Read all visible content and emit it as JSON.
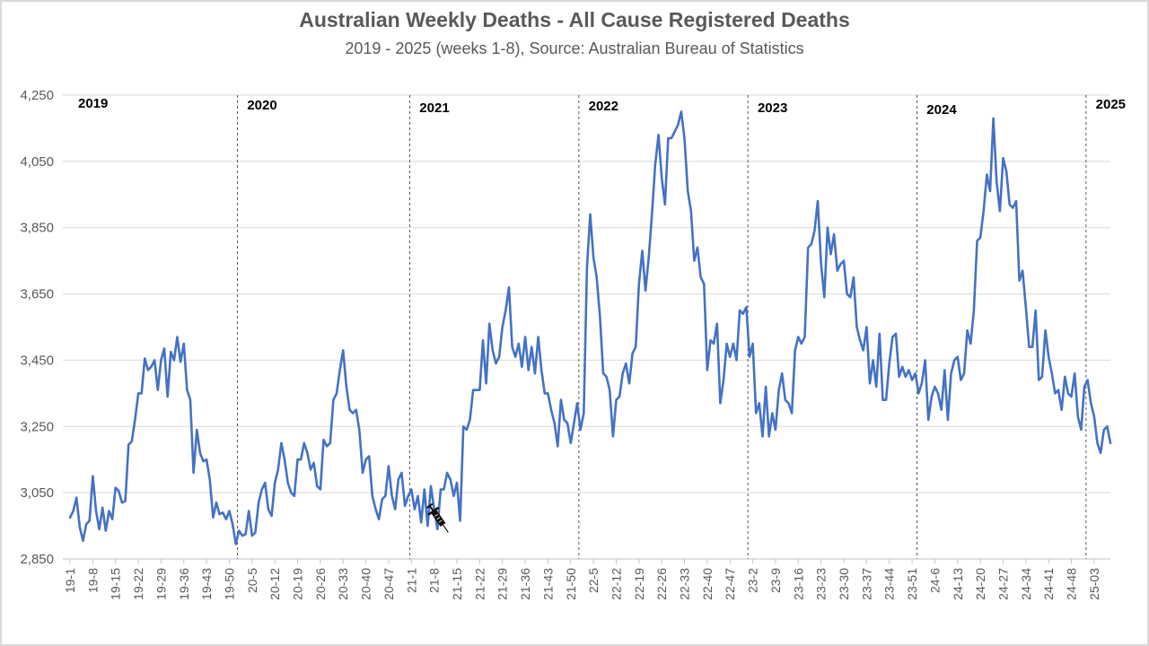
{
  "chart_data": {
    "type": "line",
    "title": "Australian Weekly Deaths - All Cause Registered Deaths",
    "subtitle": "2019 - 2025 (weeks 1-8), Source: Australian Bureau of Statistics",
    "xlabel": "",
    "ylabel": "",
    "ylim": [
      2850,
      4250
    ],
    "yticks": [
      "2,850",
      "3,050",
      "3,250",
      "3,450",
      "3,650",
      "3,850",
      "4,050",
      "4,250"
    ],
    "grid": "horizontal",
    "line_color": "#4472C4",
    "year_labels": [
      "2019",
      "2020",
      "2021",
      "2022",
      "2023",
      "2024",
      "2025"
    ],
    "xtick_labels": [
      "19-1",
      "19-8",
      "19-15",
      "19-22",
      "19-29",
      "19-36",
      "19-43",
      "19-50",
      "20-5",
      "20-12",
      "20-19",
      "20-26",
      "20-33",
      "20-40",
      "20-47",
      "21-1",
      "21-8",
      "21-15",
      "21-22",
      "21-29",
      "21-36",
      "21-43",
      "21-50",
      "22-5",
      "22-12",
      "22-19",
      "22-26",
      "22-33",
      "22-40",
      "22-47",
      "23-2",
      "23-9",
      "23-16",
      "23-23",
      "23-30",
      "23-37",
      "23-44",
      "23-51",
      "24-6",
      "24-13",
      "24-20",
      "24-27",
      "24-34",
      "24-41",
      "24-48",
      "25-03"
    ],
    "vaccine_marker_week": "21-9",
    "series": [
      {
        "values": [
          2975,
          2995,
          3035,
          2945,
          2905,
          2955,
          2965,
          3100,
          2995,
          2940,
          3005,
          2935,
          2995,
          2970,
          3065,
          3055,
          3020,
          3025,
          3195,
          3205,
          3270,
          3350,
          3350,
          3455,
          3420,
          3430,
          3450,
          3360,
          3450,
          3485,
          3340,
          3475,
          3450,
          3520,
          3445,
          3500,
          3360,
          3330,
          3110,
          3240,
          3170,
          3145,
          3150,
          3090,
          2975,
          3020,
          2985,
          2990,
          2970,
          2995,
          2955,
          2895,
          2935,
          2920,
          2925,
          2995,
          2920,
          2930,
          3020,
          3060,
          3080,
          3000,
          2980,
          3080,
          3120,
          3200,
          3150,
          3080,
          3050,
          3040,
          3150,
          3150,
          3200,
          3170,
          3120,
          3140,
          3070,
          3060,
          3210,
          3190,
          3200,
          3330,
          3350,
          3420,
          3480,
          3370,
          3300,
          3290,
          3300,
          3240,
          3110,
          3150,
          3160,
          3040,
          3000,
          2970,
          3030,
          3040,
          3130,
          3040,
          3000,
          3090,
          3110,
          3010,
          3040,
          3060,
          3000,
          3040,
          2960,
          3060,
          2950,
          3070,
          3000,
          2940,
          3060,
          3060,
          3110,
          3090,
          3040,
          3080,
          2965,
          3250,
          3240,
          3270,
          3360,
          3360,
          3360,
          3510,
          3380,
          3560,
          3480,
          3440,
          3460,
          3550,
          3600,
          3670,
          3490,
          3460,
          3500,
          3430,
          3520,
          3420,
          3490,
          3410,
          3520,
          3420,
          3350,
          3350,
          3300,
          3260,
          3190,
          3330,
          3270,
          3260,
          3200,
          3260,
          3320,
          3240,
          3290,
          3730,
          3890,
          3760,
          3700,
          3580,
          3410,
          3400,
          3360,
          3220,
          3330,
          3340,
          3410,
          3440,
          3380,
          3470,
          3490,
          3680,
          3780,
          3660,
          3760,
          3890,
          4040,
          4130,
          4000,
          3920,
          4120,
          4120,
          4140,
          4160,
          4200,
          4120,
          3960,
          3900,
          3750,
          3790,
          3700,
          3680,
          3420,
          3510,
          3500,
          3560,
          3320,
          3390,
          3500,
          3460,
          3500,
          3450,
          3600,
          3590,
          3610,
          3460,
          3500,
          3290,
          3320,
          3220,
          3370,
          3220,
          3290,
          3240,
          3360,
          3410,
          3330,
          3320,
          3290,
          3480,
          3520,
          3500,
          3520,
          3790,
          3800,
          3840,
          3930,
          3740,
          3640,
          3850,
          3770,
          3830,
          3720,
          3740,
          3750,
          3650,
          3640,
          3700,
          3550,
          3510,
          3480,
          3550,
          3380,
          3450,
          3370,
          3530,
          3330,
          3330,
          3440,
          3520,
          3530,
          3400,
          3430,
          3400,
          3420,
          3390,
          3410,
          3350,
          3380,
          3450,
          3270,
          3340,
          3370,
          3350,
          3300,
          3420,
          3270,
          3410,
          3450,
          3460,
          3390,
          3410,
          3540,
          3500,
          3600,
          3810,
          3820,
          3900,
          4010,
          3960,
          4180,
          3990,
          3900,
          4060,
          4020,
          3920,
          3910,
          3930,
          3690,
          3720,
          3610,
          3490,
          3490,
          3600,
          3390,
          3400,
          3540,
          3460,
          3410,
          3350,
          3360,
          3300,
          3400,
          3350,
          3340,
          3410,
          3280,
          3240,
          3370,
          3390,
          3320,
          3280,
          3200,
          3170,
          3240,
          3250,
          3200
        ]
      }
    ]
  }
}
